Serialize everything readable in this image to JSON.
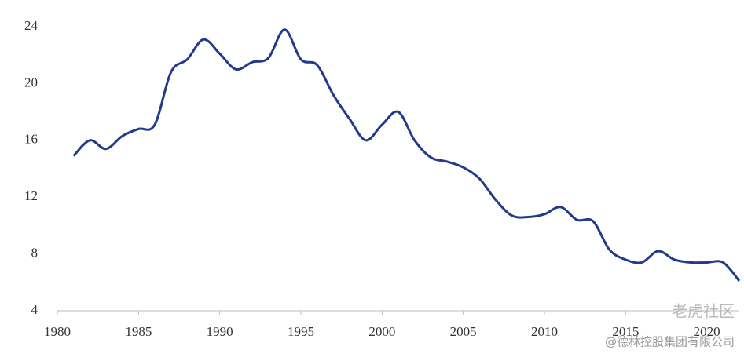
{
  "chart_data": {
    "type": "line",
    "x": [
      1981,
      1982,
      1983,
      1984,
      1985,
      1986,
      1987,
      1988,
      1989,
      1990,
      1991,
      1992,
      1993,
      1994,
      1995,
      1996,
      1997,
      1998,
      1999,
      2000,
      2001,
      2002,
      2003,
      2004,
      2005,
      2006,
      2007,
      2008,
      2009,
      2010,
      2011,
      2012,
      2013,
      2014,
      2015,
      2016,
      2017,
      2018,
      2019,
      2020,
      2021,
      2022
    ],
    "series": [
      {
        "color": "#233a8c",
        "values": [
          14.9,
          16.0,
          15.4,
          16.3,
          16.8,
          17.1,
          20.8,
          21.7,
          23.1,
          22.1,
          21.0,
          21.5,
          21.8,
          23.8,
          21.7,
          21.3,
          19.2,
          17.5,
          16.0,
          17.1,
          18.0,
          16.0,
          14.8,
          14.5,
          14.1,
          13.3,
          11.8,
          10.7,
          10.6,
          10.8,
          11.3,
          10.4,
          10.3,
          8.3,
          7.6,
          7.4,
          8.2,
          7.6,
          7.4,
          7.4,
          7.4,
          6.1
        ]
      }
    ],
    "xlim": [
      1980,
      2022
    ],
    "xticks": [
      1980,
      1985,
      1990,
      1995,
      2000,
      2005,
      2010,
      2015,
      2020
    ],
    "ylim": [
      4,
      24
    ],
    "yticks": [
      4,
      8,
      12,
      16,
      20,
      24
    ],
    "watermark": "老虎社区",
    "credit": "@德林控股集团有限公司"
  }
}
